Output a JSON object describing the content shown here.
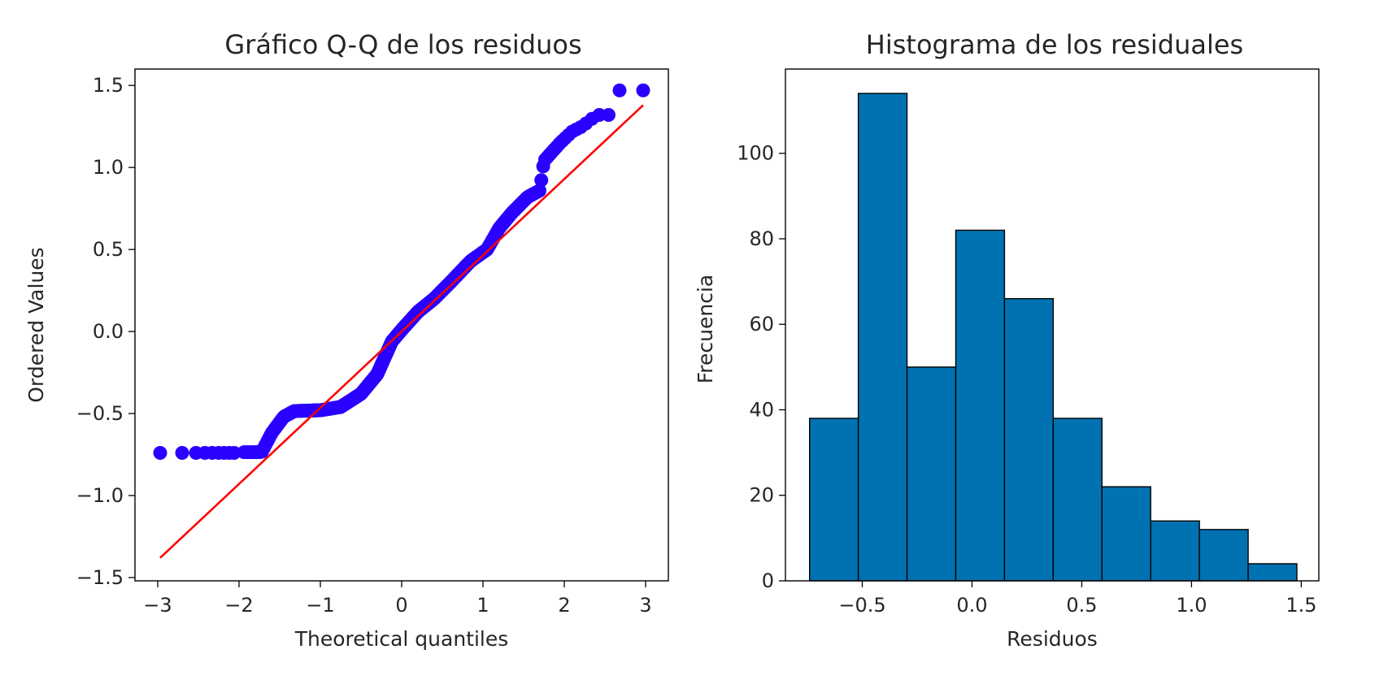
{
  "chart_data": [
    {
      "type": "scatter",
      "title": "Gráfico Q-Q de los residuos",
      "xlabel": "Theoretical quantiles",
      "ylabel": "Ordered Values",
      "xlim": [
        -3.28,
        3.28
      ],
      "ylim": [
        -1.52,
        1.6
      ],
      "xticks": [
        -3,
        -2,
        -1,
        0,
        1,
        2,
        3
      ],
      "xtick_labels": [
        "−3",
        "−2",
        "−1",
        "0",
        "1",
        "2",
        "3"
      ],
      "yticks": [
        -1.5,
        -1.0,
        -0.5,
        0.0,
        0.5,
        1.0,
        1.5
      ],
      "ytick_labels": [
        "−1.5",
        "−1.0",
        "−0.5",
        "0.0",
        "0.5",
        "1.0",
        "1.5"
      ],
      "grid": false,
      "colors": {
        "points": "#2a00ff",
        "fit_line": "#ff0000"
      },
      "fit_line": {
        "x": [
          -2.97,
          2.97
        ],
        "y": [
          -1.38,
          1.38
        ]
      },
      "curve_knots": [
        [
          -2.97,
          -0.74
        ],
        [
          -1.72,
          -0.735
        ],
        [
          -1.6,
          -0.62
        ],
        [
          -1.45,
          -0.52
        ],
        [
          -1.32,
          -0.485
        ],
        [
          -1.0,
          -0.48
        ],
        [
          -0.75,
          -0.46
        ],
        [
          -0.5,
          -0.38
        ],
        [
          -0.3,
          -0.26
        ],
        [
          -0.12,
          -0.06
        ],
        [
          0.0,
          0.01
        ],
        [
          0.2,
          0.12
        ],
        [
          0.4,
          0.2
        ],
        [
          0.6,
          0.3
        ],
        [
          0.85,
          0.43
        ],
        [
          1.05,
          0.5
        ],
        [
          1.2,
          0.63
        ],
        [
          1.35,
          0.72
        ],
        [
          1.55,
          0.82
        ],
        [
          1.7,
          0.86
        ],
        [
          1.75,
          1.04
        ],
        [
          1.95,
          1.15
        ],
        [
          2.1,
          1.22
        ],
        [
          2.22,
          1.25
        ],
        [
          2.4,
          1.32
        ],
        [
          2.55,
          1.32
        ]
      ],
      "curve_n": 480,
      "extra_points": [
        {
          "x": -2.97,
          "y": -0.74
        },
        {
          "x": -2.7,
          "y": -0.74
        },
        {
          "x": -2.53,
          "y": -0.74
        },
        {
          "x": -2.42,
          "y": -0.74
        },
        {
          "x": -2.33,
          "y": -0.74
        },
        {
          "x": -2.25,
          "y": -0.74
        },
        {
          "x": -2.18,
          "y": -0.74
        },
        {
          "x": -2.12,
          "y": -0.74
        },
        {
          "x": -2.06,
          "y": -0.74
        },
        {
          "x": 2.68,
          "y": 1.47
        },
        {
          "x": 2.97,
          "y": 1.47
        }
      ]
    },
    {
      "type": "bar",
      "title": "Histograma de los residuales",
      "xlabel": "Residuos",
      "ylabel": "Frecuencia",
      "xlim": [
        -0.85,
        1.58
      ],
      "ylim": [
        0,
        119.7
      ],
      "xticks": [
        -0.5,
        0.0,
        0.5,
        1.0,
        1.5
      ],
      "xtick_labels": [
        "−0.5",
        "0.0",
        "0.5",
        "1.0",
        "1.5"
      ],
      "yticks": [
        0,
        20,
        40,
        60,
        80,
        100
      ],
      "ytick_labels": [
        "0",
        "20",
        "40",
        "60",
        "80",
        "100"
      ],
      "grid": false,
      "colors": {
        "bars": "#0072b2",
        "edges": "#000000"
      },
      "bin_edges": [
        -0.74,
        -0.518,
        -0.296,
        -0.074,
        0.148,
        0.37,
        0.592,
        0.814,
        1.036,
        1.258,
        1.48
      ],
      "counts": [
        38,
        114,
        50,
        82,
        66,
        38,
        22,
        14,
        12,
        4
      ]
    }
  ]
}
